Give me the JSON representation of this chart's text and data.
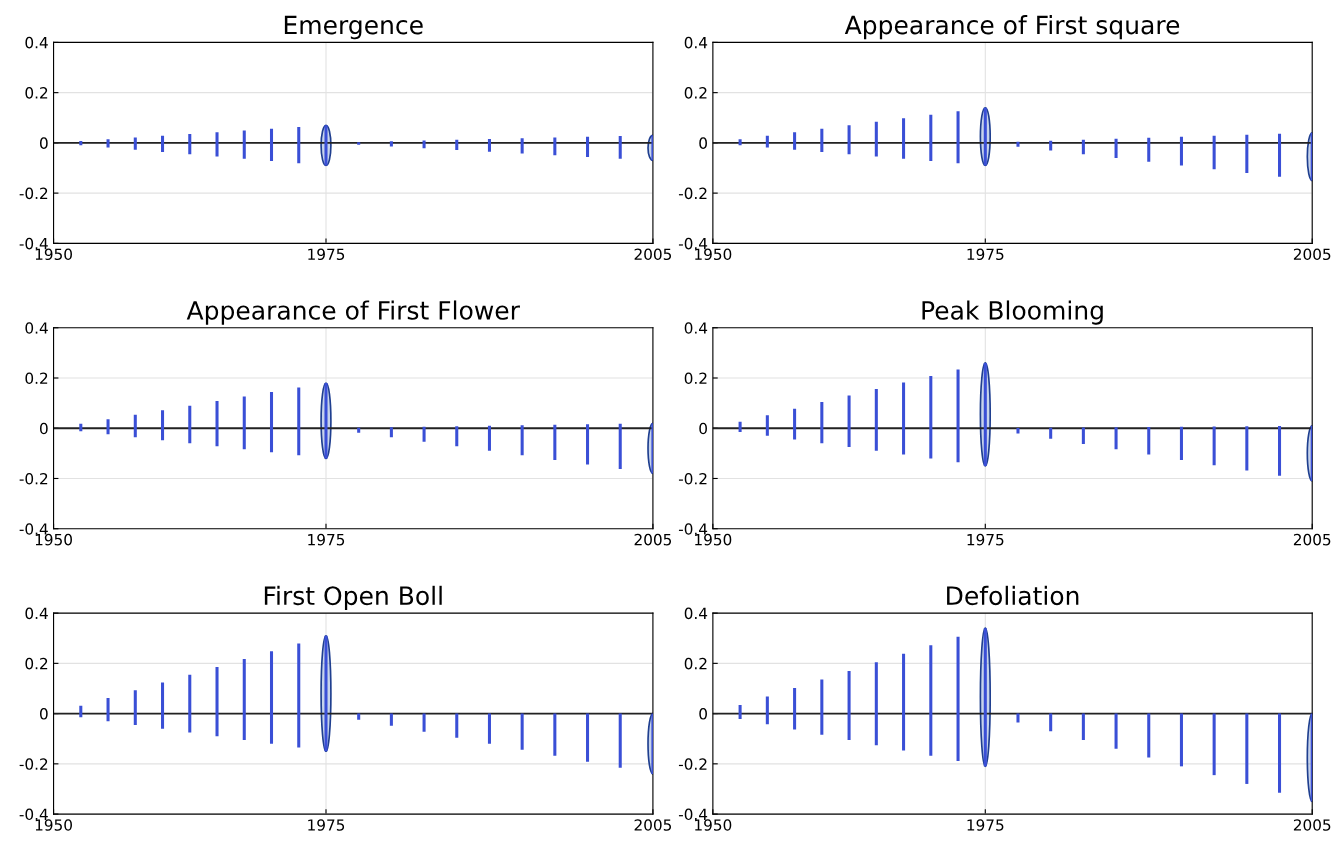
{
  "chart_data": [
    {
      "type": "bar",
      "title": "Emergence",
      "x": [
        1952.5,
        1955,
        1957.5,
        1960,
        1962.5,
        1965,
        1967.5,
        1970,
        1972.5,
        1975,
        1978,
        1981,
        1984,
        1987,
        1990,
        1993,
        1996,
        1999,
        2002,
        2005
      ],
      "base": [
        -0.009,
        -0.018,
        -0.027,
        -0.036,
        -0.045,
        -0.054,
        -0.063,
        -0.072,
        -0.081,
        -0.09,
        -0.007,
        -0.014,
        -0.021,
        -0.028,
        -0.035,
        -0.042,
        -0.049,
        -0.056,
        -0.063,
        -0.07
      ],
      "values": [
        0.016,
        0.032,
        0.048,
        0.064,
        0.08,
        0.096,
        0.112,
        0.128,
        0.144,
        0.16,
        0.01,
        0.02,
        0.03,
        0.04,
        0.05,
        0.06,
        0.07,
        0.08,
        0.09,
        0.1
      ],
      "color": "#3a4fd6",
      "xlim": [
        1950,
        2005
      ],
      "xticks": [
        1950,
        1975,
        2005
      ],
      "ylim": [
        -0.4,
        0.4
      ],
      "yticks": [
        -0.4,
        -0.2,
        0,
        0.2,
        0.4
      ],
      "grid": true,
      "ref_lines": [
        {
          "axis": "y",
          "value": 0,
          "color": "#222222"
        }
      ]
    },
    {
      "type": "bar",
      "title": "Appearance of First square",
      "x": [
        1952.5,
        1955,
        1957.5,
        1960,
        1962.5,
        1965,
        1967.5,
        1970,
        1972.5,
        1975,
        1978,
        1981,
        1984,
        1987,
        1990,
        1993,
        1996,
        1999,
        2002,
        2005
      ],
      "base": [
        -0.009,
        -0.018,
        -0.027,
        -0.036,
        -0.045,
        -0.054,
        -0.063,
        -0.072,
        -0.081,
        -0.09,
        -0.015,
        -0.03,
        -0.045,
        -0.06,
        -0.075,
        -0.09,
        -0.105,
        -0.12,
        -0.135,
        -0.15
      ],
      "values": [
        0.023,
        0.046,
        0.069,
        0.092,
        0.115,
        0.138,
        0.161,
        0.184,
        0.207,
        0.23,
        0.019,
        0.038,
        0.057,
        0.076,
        0.095,
        0.114,
        0.133,
        0.152,
        0.171,
        0.19
      ],
      "color": "#3a4fd6",
      "xlim": [
        1950,
        2005
      ],
      "xticks": [
        1950,
        1975,
        2005
      ],
      "ylim": [
        -0.4,
        0.4
      ],
      "yticks": [
        -0.4,
        -0.2,
        0,
        0.2,
        0.4
      ],
      "grid": true,
      "ref_lines": [
        {
          "axis": "y",
          "value": 0,
          "color": "#222222"
        }
      ]
    },
    {
      "type": "bar",
      "title": "Appearance of First Flower",
      "x": [
        1952.5,
        1955,
        1957.5,
        1960,
        1962.5,
        1965,
        1967.5,
        1970,
        1972.5,
        1975,
        1978,
        1981,
        1984,
        1987,
        1990,
        1993,
        1996,
        1999,
        2002,
        2005
      ],
      "base": [
        -0.012,
        -0.024,
        -0.036,
        -0.048,
        -0.06,
        -0.072,
        -0.084,
        -0.096,
        -0.108,
        -0.12,
        -0.018,
        -0.036,
        -0.054,
        -0.072,
        -0.09,
        -0.108,
        -0.126,
        -0.144,
        -0.162,
        -0.18
      ],
      "values": [
        0.03,
        0.06,
        0.09,
        0.12,
        0.15,
        0.18,
        0.21,
        0.24,
        0.27,
        0.3,
        0.02,
        0.04,
        0.06,
        0.08,
        0.1,
        0.12,
        0.14,
        0.16,
        0.18,
        0.2
      ],
      "color": "#3a4fd6",
      "xlim": [
        1950,
        2005
      ],
      "xticks": [
        1950,
        1975,
        2005
      ],
      "ylim": [
        -0.4,
        0.4
      ],
      "yticks": [
        -0.4,
        -0.2,
        0,
        0.2,
        0.4
      ],
      "grid": true,
      "ref_lines": [
        {
          "axis": "y",
          "value": 0,
          "color": "#222222"
        }
      ]
    },
    {
      "type": "bar",
      "title": "Peak Blooming",
      "x": [
        1952.5,
        1955,
        1957.5,
        1960,
        1962.5,
        1965,
        1967.5,
        1970,
        1972.5,
        1975,
        1978,
        1981,
        1984,
        1987,
        1990,
        1993,
        1996,
        1999,
        2002,
        2005
      ],
      "base": [
        -0.015,
        -0.03,
        -0.045,
        -0.06,
        -0.075,
        -0.09,
        -0.105,
        -0.12,
        -0.135,
        -0.15,
        -0.021,
        -0.042,
        -0.063,
        -0.084,
        -0.105,
        -0.126,
        -0.147,
        -0.168,
        -0.189,
        -0.21
      ],
      "values": [
        0.041,
        0.082,
        0.123,
        0.164,
        0.205,
        0.246,
        0.287,
        0.328,
        0.369,
        0.41,
        0.022,
        0.044,
        0.066,
        0.088,
        0.11,
        0.132,
        0.154,
        0.176,
        0.198,
        0.22
      ],
      "color": "#3a4fd6",
      "xlim": [
        1950,
        2005
      ],
      "xticks": [
        1950,
        1975,
        2005
      ],
      "ylim": [
        -0.4,
        0.4
      ],
      "yticks": [
        -0.4,
        -0.2,
        0,
        0.2,
        0.4
      ],
      "grid": true,
      "ref_lines": [
        {
          "axis": "y",
          "value": 0,
          "color": "#222222"
        }
      ]
    },
    {
      "type": "bar",
      "title": "First Open Boll",
      "x": [
        1952.5,
        1955,
        1957.5,
        1960,
        1962.5,
        1965,
        1967.5,
        1970,
        1972.5,
        1975,
        1978,
        1981,
        1984,
        1987,
        1990,
        1993,
        1996,
        1999,
        2002,
        2005
      ],
      "base": [
        -0.015,
        -0.03,
        -0.045,
        -0.06,
        -0.075,
        -0.09,
        -0.105,
        -0.12,
        -0.135,
        -0.15,
        -0.024,
        -0.048,
        -0.072,
        -0.096,
        -0.12,
        -0.144,
        -0.168,
        -0.192,
        -0.216,
        -0.24
      ],
      "values": [
        0.046,
        0.092,
        0.138,
        0.184,
        0.23,
        0.276,
        0.322,
        0.368,
        0.414,
        0.46,
        0.024,
        0.048,
        0.072,
        0.096,
        0.12,
        0.144,
        0.168,
        0.192,
        0.216,
        0.24
      ],
      "color": "#3a4fd6",
      "xlim": [
        1950,
        2005
      ],
      "xticks": [
        1950,
        1975,
        2005
      ],
      "ylim": [
        -0.4,
        0.4
      ],
      "yticks": [
        -0.4,
        -0.2,
        0,
        0.2,
        0.4
      ],
      "grid": true,
      "ref_lines": [
        {
          "axis": "y",
          "value": 0,
          "color": "#222222"
        }
      ]
    },
    {
      "type": "bar",
      "title": "Defoliation",
      "x": [
        1952.5,
        1955,
        1957.5,
        1960,
        1962.5,
        1965,
        1967.5,
        1970,
        1972.5,
        1975,
        1978,
        1981,
        1984,
        1987,
        1990,
        1993,
        1996,
        1999,
        2002,
        2005
      ],
      "base": [
        -0.021,
        -0.042,
        -0.063,
        -0.084,
        -0.105,
        -0.126,
        -0.147,
        -0.168,
        -0.189,
        -0.21,
        -0.035,
        -0.07,
        -0.105,
        -0.14,
        -0.175,
        -0.21,
        -0.245,
        -0.28,
        -0.315,
        -0.35
      ],
      "values": [
        0.055,
        0.11,
        0.165,
        0.22,
        0.275,
        0.33,
        0.385,
        0.44,
        0.495,
        0.55,
        0.035,
        0.07,
        0.105,
        0.14,
        0.175,
        0.21,
        0.245,
        0.28,
        0.315,
        0.35
      ],
      "color": "#3a4fd6",
      "xlim": [
        1950,
        2005
      ],
      "xticks": [
        1950,
        1975,
        2005
      ],
      "ylim": [
        -0.4,
        0.4
      ],
      "yticks": [
        -0.4,
        -0.2,
        0,
        0.2,
        0.4
      ],
      "grid": true,
      "ref_lines": [
        {
          "axis": "y",
          "value": 0,
          "color": "#222222"
        }
      ]
    }
  ]
}
